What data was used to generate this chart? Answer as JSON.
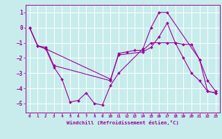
{
  "xlabel": "Windchill (Refroidissement éolien,°C)",
  "background_color": "#c8ecec",
  "line_color": "#990099",
  "grid_color": "#ffffff",
  "xlim": [
    -0.5,
    23.5
  ],
  "ylim": [
    -5.6,
    1.5
  ],
  "yticks": [
    1,
    0,
    -1,
    -2,
    -3,
    -4,
    -5
  ],
  "xticks": [
    0,
    1,
    2,
    3,
    4,
    5,
    6,
    7,
    8,
    9,
    10,
    11,
    12,
    13,
    14,
    15,
    16,
    17,
    18,
    19,
    20,
    21,
    22,
    23
  ],
  "series": [
    {
      "x": [
        0,
        1,
        2,
        3,
        10,
        11,
        12,
        13,
        14,
        15,
        16,
        17,
        18,
        19,
        20,
        21,
        22,
        23
      ],
      "y": [
        0,
        -1.2,
        -1.3,
        -2.5,
        -3.5,
        -1.7,
        -1.6,
        -1.5,
        -1.5,
        -1.0,
        -1.0,
        -1.0,
        -1.0,
        -1.1,
        -1.1,
        -2.1,
        -4.2,
        -4.3
      ]
    },
    {
      "x": [
        0,
        1,
        2,
        3,
        4,
        5,
        6,
        7,
        8,
        9,
        10,
        11,
        14,
        15,
        16,
        17,
        21,
        22,
        23
      ],
      "y": [
        0,
        -1.2,
        -1.4,
        -2.6,
        -3.4,
        -4.9,
        -4.8,
        -4.3,
        -5.0,
        -5.1,
        -3.8,
        -3.0,
        -1.4,
        0.0,
        1.0,
        1.0,
        -2.1,
        -3.5,
        -4.2
      ]
    },
    {
      "x": [
        0,
        1,
        2,
        10,
        11,
        14,
        15,
        16,
        17,
        18,
        19,
        20,
        21,
        22,
        23
      ],
      "y": [
        0,
        -1.2,
        -1.4,
        -3.4,
        -1.8,
        -1.6,
        -1.3,
        -0.6,
        0.3,
        -1.0,
        -2.0,
        -3.0,
        -3.5,
        -4.2,
        -4.3
      ]
    }
  ]
}
